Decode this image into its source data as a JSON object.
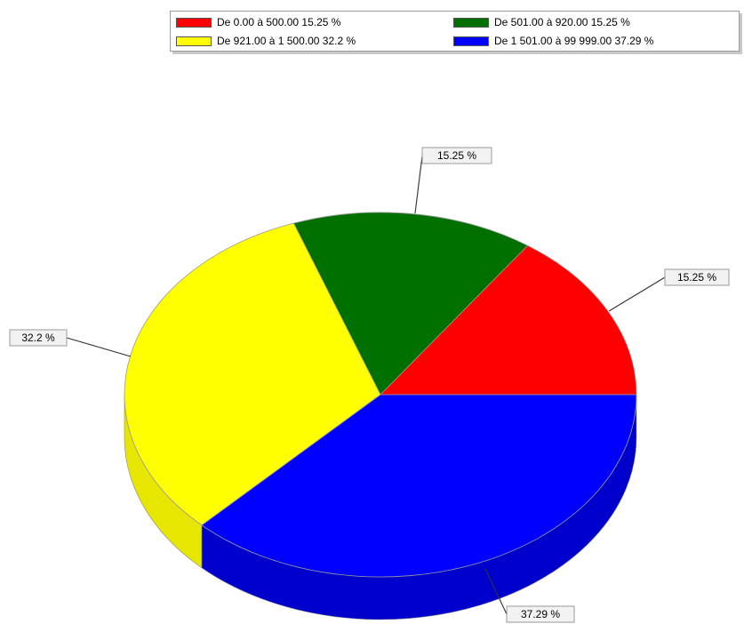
{
  "chart_data": {
    "type": "pie",
    "slices": [
      {
        "label": "De 0.00 à 500.00  15.25 %",
        "value": 15.25,
        "data_label": "15.25 %",
        "color": "#ff0000",
        "side_color": "#cc0000"
      },
      {
        "label": "De 501.00 à 920.00  15.25 %",
        "value": 15.25,
        "data_label": "15.25 %",
        "color": "#007000",
        "side_color": "#005000"
      },
      {
        "label": "De 921.00 à 1 500.00  32.2 %",
        "value": 32.2,
        "data_label": "32.2 %",
        "color": "#ffff00",
        "side_color": "#e6e600"
      },
      {
        "label": "De 1 501.00 à 99 999.00  37.29 %",
        "value": 37.29,
        "data_label": "37.29 %",
        "color": "#0000ff",
        "side_color": "#0000cc"
      }
    ],
    "start_angle_deg": 0,
    "direction": "counterclockwise",
    "style": "3d",
    "legend_position": "top-right"
  }
}
